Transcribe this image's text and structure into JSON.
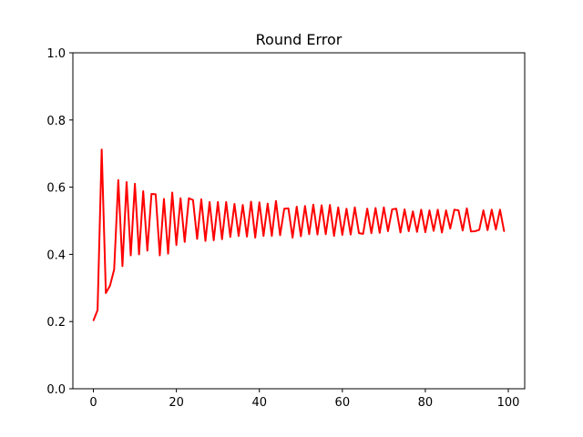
{
  "chart_data": {
    "type": "line",
    "title": "Round Error",
    "xlabel": "",
    "ylabel": "",
    "xlim": [
      -4.95,
      103.95
    ],
    "ylim": [
      0.0,
      1.0
    ],
    "xticks": [
      0,
      20,
      40,
      60,
      80,
      100
    ],
    "xtick_labels": [
      "0",
      "20",
      "40",
      "60",
      "80",
      "100"
    ],
    "yticks": [
      0.0,
      0.2,
      0.4,
      0.6,
      0.8,
      1.0
    ],
    "ytick_labels": [
      "0.0",
      "0.2",
      "0.4",
      "0.6",
      "0.8",
      "1.0"
    ],
    "grid": false,
    "series": [
      {
        "color": "#ff0000",
        "x": [
          0,
          1,
          2,
          3,
          4,
          5,
          6,
          7,
          8,
          9,
          10,
          11,
          12,
          13,
          14,
          15,
          16,
          17,
          18,
          19,
          20,
          21,
          22,
          23,
          24,
          25,
          26,
          27,
          28,
          29,
          30,
          31,
          32,
          33,
          34,
          35,
          36,
          37,
          38,
          39,
          40,
          41,
          42,
          43,
          44,
          45,
          46,
          47,
          48,
          49,
          50,
          51,
          52,
          53,
          54,
          55,
          56,
          57,
          58,
          59,
          60,
          61,
          62,
          63,
          64,
          65,
          66,
          67,
          68,
          69,
          70,
          71,
          72,
          73,
          74,
          75,
          76,
          77,
          78,
          79,
          80,
          81,
          82,
          83,
          84,
          85,
          86,
          87,
          88,
          89,
          90,
          91,
          92,
          93,
          94,
          95,
          96,
          97,
          98,
          99
        ],
        "values": [
          0.203,
          0.234,
          0.712,
          0.285,
          0.307,
          0.355,
          0.621,
          0.365,
          0.615,
          0.397,
          0.61,
          0.4,
          0.588,
          0.411,
          0.58,
          0.579,
          0.397,
          0.565,
          0.402,
          0.584,
          0.428,
          0.567,
          0.437,
          0.567,
          0.562,
          0.446,
          0.564,
          0.44,
          0.556,
          0.442,
          0.556,
          0.445,
          0.556,
          0.452,
          0.55,
          0.455,
          0.547,
          0.453,
          0.557,
          0.45,
          0.555,
          0.455,
          0.551,
          0.455,
          0.559,
          0.457,
          0.536,
          0.537,
          0.45,
          0.542,
          0.454,
          0.544,
          0.46,
          0.548,
          0.459,
          0.546,
          0.46,
          0.547,
          0.455,
          0.54,
          0.458,
          0.536,
          0.459,
          0.54,
          0.463,
          0.461,
          0.536,
          0.463,
          0.538,
          0.464,
          0.54,
          0.469,
          0.534,
          0.536,
          0.465,
          0.534,
          0.469,
          0.528,
          0.467,
          0.533,
          0.466,
          0.531,
          0.47,
          0.533,
          0.465,
          0.531,
          0.477,
          0.533,
          0.531,
          0.471,
          0.537,
          0.468,
          0.469,
          0.473,
          0.531,
          0.472,
          0.533,
          0.474,
          0.533,
          0.468
        ]
      }
    ]
  }
}
